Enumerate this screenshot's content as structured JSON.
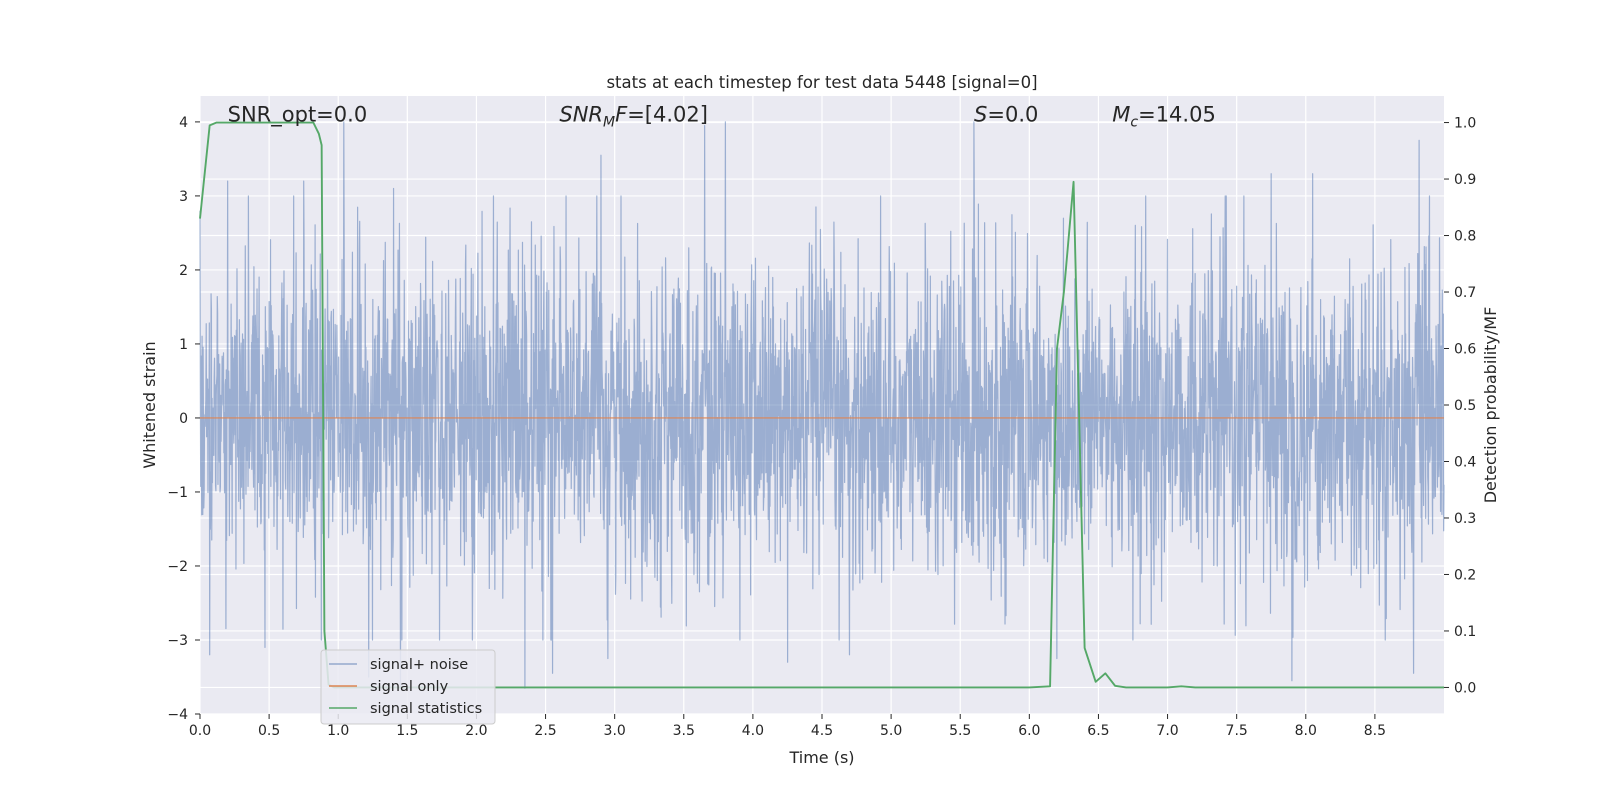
{
  "chart_data": {
    "type": "line",
    "title": "stats at each timestep for test data 5448 [signal=0]",
    "xlabel": "Time (s)",
    "ylabel_left": "Whitened strain",
    "ylabel_right": "Detection probability/MF",
    "xlim": [
      0,
      9.0
    ],
    "ylim_left": [
      -4.0,
      4.35
    ],
    "ylim_right": [
      -0.047,
      1.047
    ],
    "x_ticks": [
      "0.0",
      "0.5",
      "1.0",
      "1.5",
      "2.0",
      "2.5",
      "3.0",
      "3.5",
      "4.0",
      "4.5",
      "5.0",
      "5.5",
      "6.0",
      "6.5",
      "7.0",
      "7.5",
      "8.0",
      "8.5"
    ],
    "y_ticks_left": [
      "4",
      "3",
      "2",
      "1",
      "0",
      "−1",
      "−2",
      "−3",
      "−4"
    ],
    "y_ticks_right": [
      "1.0",
      "0.9",
      "0.8",
      "0.7",
      "0.6",
      "0.5",
      "0.4",
      "0.3",
      "0.2",
      "0.1",
      "0.0"
    ],
    "grid": true,
    "legend_position": "lower-left",
    "annotations": [
      {
        "text": "SNR_opt=0.0",
        "x": 0.2,
        "y": 4.1
      },
      {
        "text_prefix": "SNR",
        "text_sub": "M",
        "text_suffix": "F=[4.02]",
        "x": 2.6,
        "y": 4.1
      },
      {
        "text_prefix": "S",
        "text_sub": "",
        "text_suffix": "=0.0",
        "x": 5.6,
        "y": 4.1
      },
      {
        "text_prefix": "M",
        "text_sub": "c",
        "text_suffix": "=14.05",
        "x": 6.6,
        "y": 4.1
      }
    ],
    "series": [
      {
        "name": "signal+ noise",
        "axis": "left",
        "color": "#4c72b0",
        "alpha": 0.5,
        "description_values": "whitened noise, approx. standard normal",
        "peaks": [
          [
            0.0,
            2.8
          ],
          [
            0.2,
            3.2
          ],
          [
            0.35,
            3.0
          ],
          [
            0.75,
            3.2
          ],
          [
            1.04,
            4.0
          ],
          [
            1.4,
            3.1
          ],
          [
            2.9,
            3.55
          ],
          [
            3.65,
            3.95
          ],
          [
            3.8,
            4.0
          ],
          [
            5.6,
            4.0
          ],
          [
            7.75,
            3.3
          ],
          [
            8.05,
            3.3
          ],
          [
            8.82,
            3.75
          ]
        ],
        "troughs": [
          [
            0.07,
            -3.2
          ],
          [
            0.47,
            -3.1
          ],
          [
            1.22,
            -3.5
          ],
          [
            1.45,
            -3.65
          ],
          [
            2.35,
            -3.65
          ],
          [
            2.55,
            -3.45
          ],
          [
            2.95,
            -3.25
          ],
          [
            4.25,
            -3.3
          ],
          [
            4.7,
            -3.2
          ],
          [
            6.2,
            -3.25
          ],
          [
            6.75,
            -3.0
          ],
          [
            7.9,
            -3.55
          ],
          [
            8.78,
            -3.45
          ]
        ]
      },
      {
        "name": "signal only",
        "axis": "left",
        "color": "#dd8452",
        "x": [
          0.0,
          9.0
        ],
        "y": [
          0.0,
          0.0
        ]
      },
      {
        "name": "signal statistics",
        "axis": "right",
        "color": "#55a868",
        "x": [
          0.0,
          0.07,
          0.12,
          0.2,
          0.5,
          0.82,
          0.86,
          0.88,
          0.9,
          0.93,
          0.97,
          1.5,
          2.0,
          3.0,
          4.0,
          5.0,
          6.0,
          6.15,
          6.2,
          6.25,
          6.32,
          6.4,
          6.48,
          6.55,
          6.62,
          6.7,
          7.0,
          7.1,
          7.2,
          8.0,
          9.0
        ],
        "y": [
          0.83,
          0.995,
          1.0,
          1.0,
          1.0,
          1.0,
          0.98,
          0.96,
          0.1,
          0.005,
          0.0,
          0.0,
          0.0,
          0.0,
          0.0,
          0.0,
          0.0,
          0.002,
          0.6,
          0.7,
          0.895,
          0.07,
          0.01,
          0.025,
          0.003,
          0.0,
          0.0,
          0.002,
          0.0,
          0.0,
          0.0
        ]
      }
    ]
  }
}
